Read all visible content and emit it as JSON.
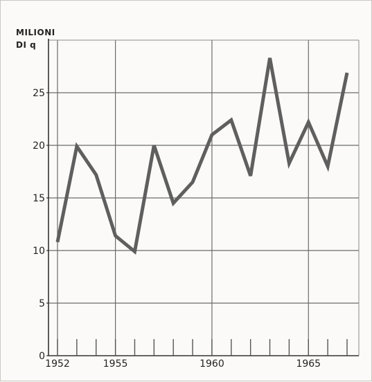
{
  "chart_data": {
    "type": "line",
    "ylabel_line1": "MILIONI",
    "ylabel_line2": "DI q",
    "xlim": [
      1951.5,
      1967.5
    ],
    "ylim": [
      0,
      30
    ],
    "yticks": [
      0,
      5,
      10,
      15,
      20,
      25
    ],
    "ytick_labels": [
      "0",
      "5",
      "10",
      "15",
      "20",
      "25"
    ],
    "xtick_labels": [
      {
        "value": 1952,
        "label": "1952"
      },
      {
        "value": 1955,
        "label": "1955"
      },
      {
        "value": 1960,
        "label": "1960"
      },
      {
        "value": 1965,
        "label": "1965"
      }
    ],
    "grid": true,
    "series": [
      {
        "color": "#5f5f5f",
        "x": [
          1952,
          1953,
          1954,
          1955,
          1956,
          1957,
          1958,
          1959,
          1960,
          1961,
          1962,
          1963,
          1964,
          1965,
          1966,
          1967
        ],
        "values": [
          10.8,
          19.9,
          17.2,
          11.4,
          9.9,
          20.0,
          14.5,
          16.5,
          21.0,
          22.4,
          17.1,
          28.3,
          18.3,
          22.2,
          18.0,
          26.9
        ]
      }
    ]
  }
}
